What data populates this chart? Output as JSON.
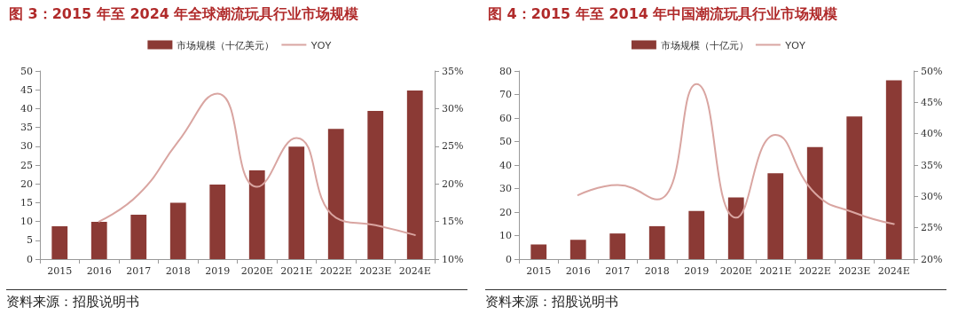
{
  "chart_data": [
    {
      "type": "bar",
      "title": "图 3：2015 年至 2024 年全球潮流玩具行业市场规模",
      "categories": [
        "2015",
        "2016",
        "2017",
        "2018",
        "2019",
        "2020E",
        "2021E",
        "2022E",
        "2023E",
        "2024E"
      ],
      "series": [
        {
          "name": "市场规模（十亿美元）",
          "color": "#8b3a35",
          "values": [
            8.7,
            9.9,
            11.8,
            15,
            19.8,
            23.6,
            29.9,
            34.6,
            39.4,
            44.8
          ]
        },
        {
          "name": "YOY",
          "type": "line",
          "axis": "y2",
          "color": "#d9a5a1",
          "values": [
            null,
            15.0,
            18.6,
            25.6,
            32.0,
            19.6,
            26.1,
            15.5,
            14.5,
            13.2
          ]
        }
      ],
      "ylim": [
        0,
        50
      ],
      "yticks": [
        0,
        5,
        10,
        15,
        20,
        25,
        30,
        35,
        40,
        45,
        50
      ],
      "y2lim": [
        10,
        35
      ],
      "y2ticks": [
        {
          "value": 10,
          "label": "10%"
        },
        {
          "value": 15,
          "label": "15%"
        },
        {
          "value": 20,
          "label": "20%"
        },
        {
          "value": 25,
          "label": "25%"
        },
        {
          "value": 30,
          "label": "30%"
        },
        {
          "value": 35,
          "label": "35%"
        }
      ],
      "grid": false,
      "legend": "top",
      "marker": "none",
      "line_style": "solid",
      "annotations": [
        "资料来源：招股说明书"
      ]
    },
    {
      "type": "bar",
      "title": "图 4：2015 年至 2014 年中国潮流玩具行业市场规模",
      "categories": [
        "2015",
        "2016",
        "2017",
        "2018",
        "2019",
        "2020E",
        "2021E",
        "2022E",
        "2023E",
        "2024E"
      ],
      "series": [
        {
          "name": "市场规模（十亿元）",
          "color": "#8b3a35",
          "values": [
            6.2,
            8.2,
            10.9,
            14.0,
            20.5,
            26.2,
            36.5,
            47.6,
            60.7,
            76.0
          ]
        },
        {
          "name": "YOY",
          "type": "line",
          "axis": "y2",
          "color": "#d9a5a1",
          "values": [
            null,
            30.2,
            31.8,
            29.5,
            47.9,
            26.6,
            39.8,
            30.5,
            27.4,
            25.6
          ]
        }
      ],
      "ylim": [
        0,
        80
      ],
      "yticks": [
        0,
        10,
        20,
        30,
        40,
        50,
        60,
        70,
        80
      ],
      "y2lim": [
        20,
        50
      ],
      "y2ticks": [
        {
          "value": 20,
          "label": "20%"
        },
        {
          "value": 25,
          "label": "25%"
        },
        {
          "value": 30,
          "label": "30%"
        },
        {
          "value": 35,
          "label": "35%"
        },
        {
          "value": 40,
          "label": "40%"
        },
        {
          "value": 45,
          "label": "45%"
        },
        {
          "value": 50,
          "label": "50%"
        }
      ],
      "grid": false,
      "legend": "top",
      "marker": "none",
      "line_style": "solid",
      "annotations": [
        "资料来源：招股说明书"
      ]
    }
  ]
}
